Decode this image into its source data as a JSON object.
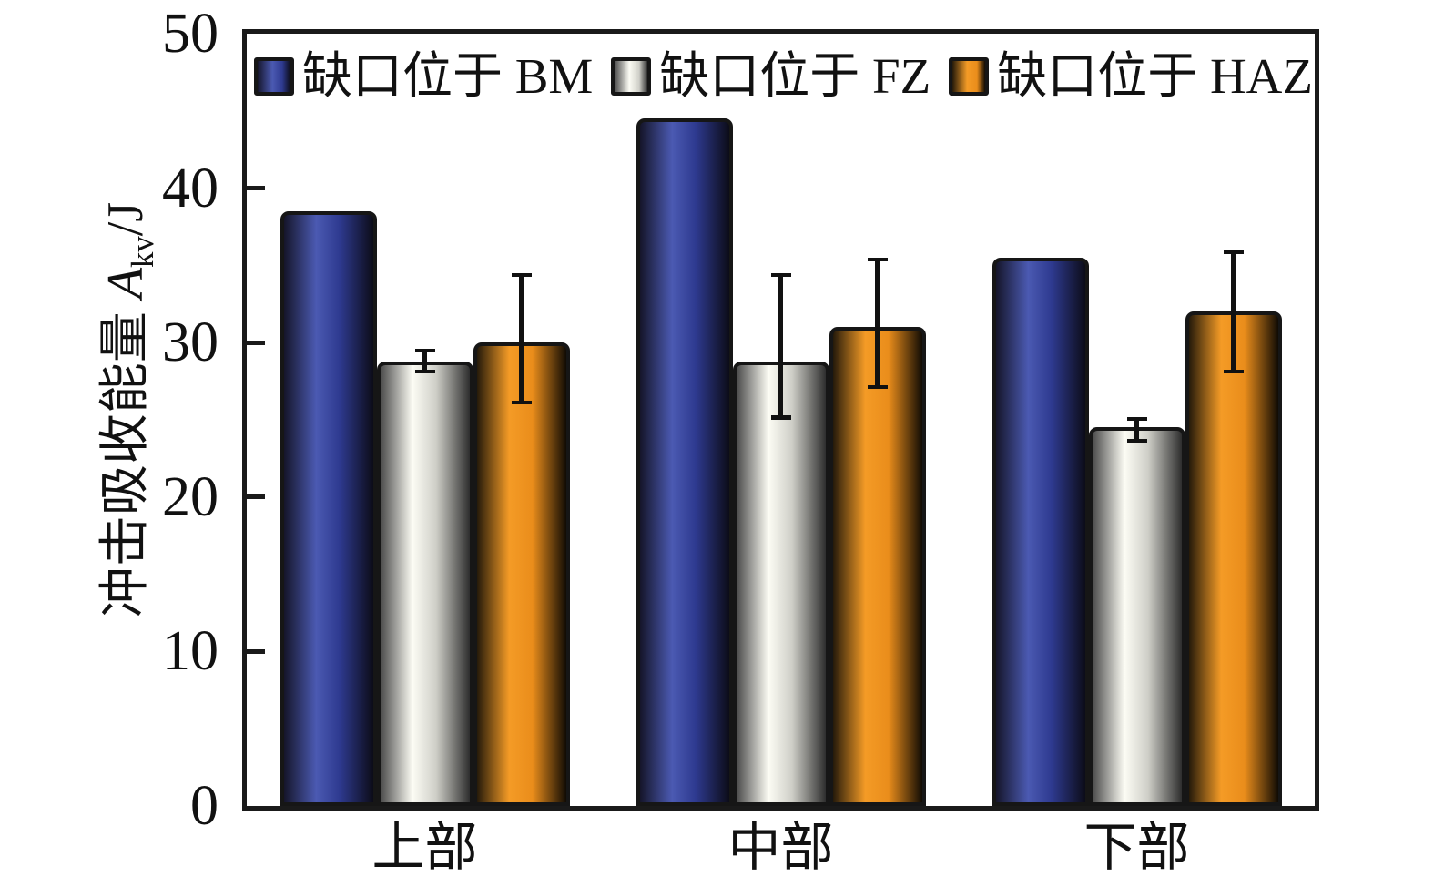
{
  "figure": {
    "background": "#ffffff",
    "axis_color": "#1a1a1a",
    "text_color": "#111111",
    "error_bar_color": "#111111",
    "y_axis_title": {
      "prefix": "冲击吸收能量 ",
      "symbol": "A",
      "subscript": "kv",
      "suffix": "/J"
    }
  },
  "chart_data": {
    "type": "bar",
    "title": "",
    "xlabel": "",
    "ylabel": "冲击吸收能量 A_kv/J",
    "ylim": [
      0,
      50
    ],
    "yticks": [
      0,
      10,
      20,
      30,
      40,
      50
    ],
    "grid": false,
    "legend_position": "top-inside",
    "categories": [
      "上部",
      "中部",
      "下部"
    ],
    "series": [
      {
        "key": "bm",
        "name": "缺口位于 BM",
        "values": [
          38.5,
          44.5,
          35.5
        ],
        "error_high": null,
        "error_low": null,
        "colors": {
          "dark_left": "#15152a",
          "bright": "#4b5ab2",
          "mid": "#2e3a90",
          "dark_right": "#0c0c18"
        }
      },
      {
        "key": "fz",
        "name": "缺口位于 FZ",
        "values": [
          28.8,
          28.8,
          24.5
        ],
        "error_high": [
          29.6,
          34.5,
          25.2
        ],
        "error_low": [
          28.0,
          25.0,
          23.5
        ],
        "colors": {
          "dark_left": "#4a4a4a",
          "bright": "#fcfcf4",
          "mid": "#cfcfc8",
          "dark_right": "#2e2e2e"
        }
      },
      {
        "key": "haz",
        "name": "缺口位于 HAZ",
        "values": [
          30.0,
          31.0,
          32.0
        ],
        "error_high": [
          34.5,
          35.5,
          36.0
        ],
        "error_low": [
          26.0,
          27.0,
          28.0
        ],
        "colors": {
          "dark_left": "#251a0a",
          "bright": "#f49b26",
          "mid": "#ea8d1b",
          "dark_right": "#100b04"
        }
      }
    ]
  }
}
